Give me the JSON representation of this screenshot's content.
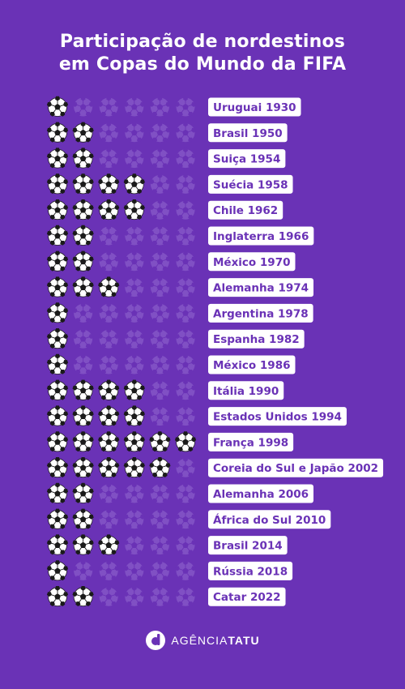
{
  "chart_data": {
    "type": "pictogram",
    "title_lines": [
      "Participação de nordestinos",
      "em Copas do Mundo da FIFA"
    ],
    "max_icons": 6,
    "categories": [
      "Uruguai 1930",
      "Brasil 1950",
      "Suiça 1954",
      "Suécia 1958",
      "Chile 1962",
      "Inglaterra 1966",
      "México 1970",
      "Alemanha 1974",
      "Argentina 1978",
      "Espanha 1982",
      "México 1986",
      "Itália 1990",
      "Estados Unidos 1994",
      "França 1998",
      "Coreia do Sul e Japão 2002",
      "Alemanha 2006",
      "África do Sul 2010",
      "Brasil 2014",
      "Rússia 2018",
      "Catar 2022"
    ],
    "values": [
      1,
      2,
      2,
      4,
      4,
      2,
      2,
      3,
      1,
      1,
      1,
      4,
      4,
      6,
      5,
      2,
      2,
      3,
      1,
      2
    ]
  },
  "colors": {
    "background": "#6a32b6",
    "ball_active_fill": "#ffffff",
    "ball_active_patch": "#1a1a1a",
    "ball_inactive_fill": "#8050c4",
    "ball_inactive_patch": "#6a32b6",
    "label_bg": "#ffffff",
    "label_text": "#6a32b6"
  },
  "footer": {
    "logo_part1": "AGÊNCIA",
    "logo_part2": "TATU"
  }
}
